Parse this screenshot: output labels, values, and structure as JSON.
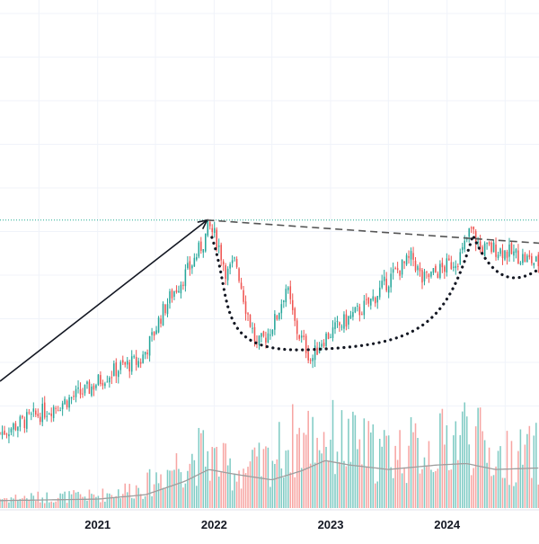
{
  "chart_data": {
    "type": "candlestick",
    "timeframe": "weekly",
    "x_axis": {
      "ticks": [
        {
          "label": "2021",
          "date": "2021-01-01"
        },
        {
          "label": "2022",
          "date": "2022-01-01"
        },
        {
          "label": "2023",
          "date": "2023-01-01"
        },
        {
          "label": "2024",
          "date": "2024-01-01"
        }
      ],
      "range": [
        "2020-03-01",
        "2024-10-15"
      ]
    },
    "price_range": [
      0,
      100
    ],
    "price_path": [
      [
        "2020-03-01",
        12
      ],
      [
        "2020-06-01",
        17
      ],
      [
        "2020-09-01",
        22
      ],
      [
        "2020-12-01",
        27
      ],
      [
        "2021-01-15",
        31
      ],
      [
        "2021-03-15",
        35
      ],
      [
        "2021-05-15",
        37
      ],
      [
        "2021-06-20",
        45
      ],
      [
        "2021-07-15",
        52
      ],
      [
        "2021-08-20",
        60
      ],
      [
        "2021-09-20",
        65
      ],
      [
        "2021-10-20",
        70
      ],
      [
        "2021-12-01",
        79
      ],
      [
        "2021-12-15",
        84
      ],
      [
        "2022-01-10",
        79
      ],
      [
        "2022-02-10",
        67
      ],
      [
        "2022-03-10",
        72
      ],
      [
        "2022-04-10",
        56
      ],
      [
        "2022-05-15",
        42
      ],
      [
        "2022-06-15",
        46
      ],
      [
        "2022-07-15",
        52
      ],
      [
        "2022-08-15",
        63
      ],
      [
        "2022-09-15",
        48
      ],
      [
        "2022-10-15",
        42
      ],
      [
        "2022-11-01",
        37
      ],
      [
        "2022-12-01",
        44
      ],
      [
        "2023-01-15",
        48
      ],
      [
        "2023-03-01",
        52
      ],
      [
        "2023-05-01",
        57
      ],
      [
        "2023-07-15",
        67
      ],
      [
        "2023-09-15",
        73
      ],
      [
        "2023-10-15",
        65
      ],
      [
        "2023-11-15",
        67
      ],
      [
        "2024-01-15",
        71
      ],
      [
        "2024-02-15",
        74
      ],
      [
        "2024-03-15",
        83
      ],
      [
        "2024-04-15",
        76
      ],
      [
        "2024-06-01",
        76
      ],
      [
        "2024-08-01",
        74
      ],
      [
        "2024-10-10",
        71
      ]
    ],
    "volume_range": [
      0,
      100
    ],
    "volume_profile": [
      [
        "2020-03-01",
        8
      ],
      [
        "2021-01-01",
        10
      ],
      [
        "2021-06-01",
        18
      ],
      [
        "2021-09-01",
        35
      ],
      [
        "2021-12-01",
        45
      ],
      [
        "2022-03-01",
        30
      ],
      [
        "2022-06-01",
        35
      ],
      [
        "2022-09-01",
        55
      ],
      [
        "2022-12-01",
        60
      ],
      [
        "2023-06-01",
        45
      ],
      [
        "2023-12-01",
        50
      ],
      [
        "2024-03-01",
        65
      ],
      [
        "2024-06-01",
        40
      ],
      [
        "2024-10-15",
        45
      ]
    ],
    "volume_ma": [
      [
        "2020-03-01",
        5
      ],
      [
        "2021-01-01",
        6
      ],
      [
        "2021-06-01",
        9
      ],
      [
        "2021-10-01",
        18
      ],
      [
        "2021-12-15",
        26
      ],
      [
        "2022-03-01",
        23
      ],
      [
        "2022-07-01",
        19
      ],
      [
        "2022-10-01",
        25
      ],
      [
        "2022-12-15",
        32
      ],
      [
        "2023-03-01",
        29
      ],
      [
        "2023-07-01",
        26
      ],
      [
        "2023-12-01",
        29
      ],
      [
        "2024-03-01",
        30
      ],
      [
        "2024-06-01",
        26
      ],
      [
        "2024-10-15",
        27
      ]
    ],
    "horizontal_level": {
      "price": 86,
      "style": "dotted",
      "color": "#22ab94"
    },
    "annotations": [
      {
        "type": "arrow",
        "from": [
          "2020-03-01",
          30
        ],
        "to": [
          "2021-12-10",
          86
        ],
        "style": "solid"
      },
      {
        "type": "trendline",
        "from": [
          "2021-12-10",
          86
        ],
        "to": [
          "2024-10-15",
          78
        ],
        "style": "dashed"
      },
      {
        "type": "cup-curve",
        "from": [
          "2021-12-25",
          80
        ],
        "bottom": [
          "2022-11-01",
          41
        ],
        "to": [
          "2024-03-20",
          80
        ],
        "style": "dotted"
      },
      {
        "type": "handle-curve",
        "from": [
          "2024-03-25",
          80
        ],
        "to": [
          "2024-10-15",
          69
        ],
        "style": "dotted"
      }
    ],
    "grid": true,
    "colors": {
      "up": "#26a69a",
      "down": "#ef5350",
      "grid": "#f0f3fa",
      "annotation": "#131722",
      "volume_ma": "#9e9e9e"
    }
  }
}
